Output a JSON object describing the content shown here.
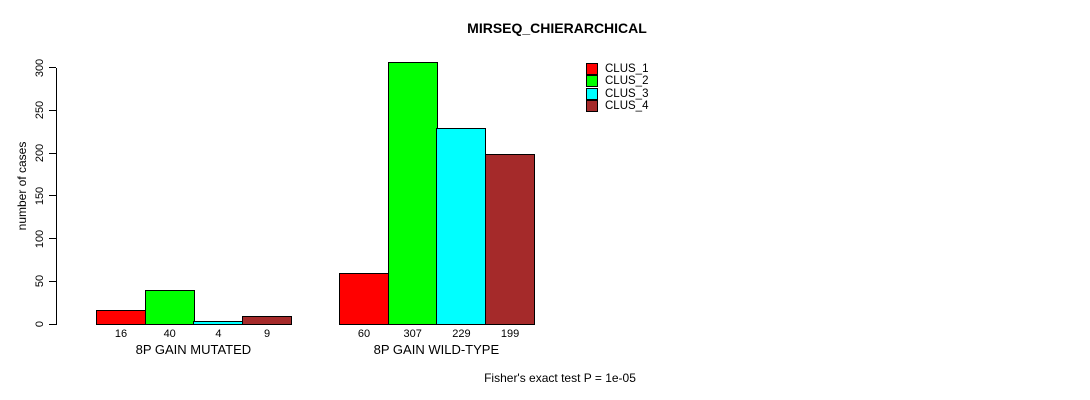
{
  "title": "MIRSEQ_CHIERARCHICAL",
  "footer": "Fisher's exact test P = 1e-05",
  "chart_data": {
    "type": "bar",
    "title": "MIRSEQ_CHIERARCHICAL",
    "ylabel": "number of cases",
    "xlabel": "",
    "ylim": [
      0,
      300
    ],
    "yticks": [
      0,
      50,
      100,
      150,
      200,
      250,
      300
    ],
    "grid": false,
    "legend_position": "top-right-inside",
    "bar_value_labels": true,
    "categories": [
      "8P GAIN MUTATED",
      "8P GAIN WILD-TYPE"
    ],
    "series": [
      {
        "name": "CLUS_1",
        "color": "#FF0000",
        "values": [
          16,
          60
        ]
      },
      {
        "name": "CLUS_2",
        "color": "#00FF00",
        "values": [
          40,
          307
        ]
      },
      {
        "name": "CLUS_3",
        "color": "#00FFFF",
        "values": [
          4,
          229
        ]
      },
      {
        "name": "CLUS_4",
        "color": "#A52A2A",
        "values": [
          9,
          199
        ]
      }
    ],
    "footer": "Fisher's exact test P = 1e-05",
    "colors": {
      "axis": "#000000",
      "background": "#FFFFFF",
      "bar_border": "#000000"
    }
  }
}
